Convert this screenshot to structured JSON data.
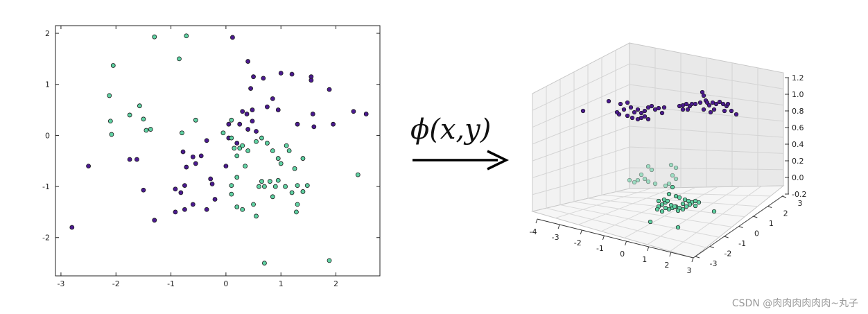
{
  "chart_data": [
    {
      "type": "scatter",
      "title": "",
      "xlabel": "",
      "ylabel": "",
      "xlim": [
        -3.1,
        2.8
      ],
      "ylim": [
        -2.75,
        2.15
      ],
      "xticks": [
        -3,
        -2,
        -1,
        0,
        1,
        2
      ],
      "yticks": [
        2,
        1,
        0,
        -1,
        -2
      ],
      "grid": false,
      "series": [
        {
          "color": "#4b1a8f",
          "points": [
            [
              -2.8,
              -1.8
            ],
            [
              -2.5,
              -0.6
            ],
            [
              -1.75,
              -0.47
            ],
            [
              -1.62,
              -0.47
            ],
            [
              -1.5,
              -1.07
            ],
            [
              -1.3,
              -1.66
            ],
            [
              0.12,
              1.92
            ],
            [
              0.4,
              1.45
            ],
            [
              0.5,
              1.15
            ],
            [
              0.68,
              1.12
            ],
            [
              1.0,
              1.22
            ],
            [
              1.2,
              1.2
            ],
            [
              1.55,
              1.15
            ],
            [
              1.88,
              0.9
            ],
            [
              1.55,
              1.08
            ],
            [
              0.45,
              0.92
            ],
            [
              0.85,
              0.72
            ],
            [
              0.75,
              0.56
            ],
            [
              0.95,
              0.5
            ],
            [
              0.3,
              0.47
            ],
            [
              0.48,
              0.5
            ],
            [
              0.38,
              0.42
            ],
            [
              0.48,
              0.28
            ],
            [
              0.25,
              0.22
            ],
            [
              0.4,
              0.12
            ],
            [
              0.55,
              0.08
            ],
            [
              0.05,
              0.22
            ],
            [
              1.3,
              0.22
            ],
            [
              1.58,
              0.42
            ],
            [
              1.6,
              0.17
            ],
            [
              1.95,
              0.22
            ],
            [
              2.32,
              0.47
            ],
            [
              2.55,
              0.42
            ],
            [
              0.05,
              -0.05
            ],
            [
              0.2,
              -0.15
            ],
            [
              -0.35,
              -0.1
            ],
            [
              -0.55,
              -0.55
            ],
            [
              -0.78,
              -0.32
            ],
            [
              -0.72,
              -0.62
            ],
            [
              -0.45,
              -0.4
            ],
            [
              -0.6,
              -0.42
            ],
            [
              -0.28,
              -0.85
            ],
            [
              -0.25,
              -0.95
            ],
            [
              -0.2,
              -1.25
            ],
            [
              -0.35,
              -1.45
            ],
            [
              -0.6,
              -1.35
            ],
            [
              -0.75,
              -1.45
            ],
            [
              -0.82,
              -1.12
            ],
            [
              -0.92,
              -1.05
            ],
            [
              -0.75,
              -0.98
            ],
            [
              -0.92,
              -1.5
            ],
            [
              0.0,
              -0.6
            ]
          ]
        },
        {
          "color": "#5fd1a2",
          "points": [
            [
              -1.3,
              1.93
            ],
            [
              -0.72,
              1.95
            ],
            [
              -0.85,
              1.5
            ],
            [
              -2.05,
              1.37
            ],
            [
              -2.12,
              0.78
            ],
            [
              -1.57,
              0.58
            ],
            [
              -1.75,
              0.4
            ],
            [
              -1.5,
              0.32
            ],
            [
              -2.1,
              0.28
            ],
            [
              -1.45,
              0.1
            ],
            [
              -1.37,
              0.12
            ],
            [
              -2.08,
              0.02
            ],
            [
              -0.8,
              0.05
            ],
            [
              -0.55,
              0.3
            ],
            [
              -0.05,
              0.05
            ],
            [
              0.1,
              0.3
            ],
            [
              0.1,
              -0.05
            ],
            [
              0.15,
              -0.25
            ],
            [
              0.2,
              -0.4
            ],
            [
              0.25,
              -0.25
            ],
            [
              0.3,
              -0.2
            ],
            [
              0.4,
              -0.3
            ],
            [
              0.35,
              -0.6
            ],
            [
              0.55,
              -0.12
            ],
            [
              0.65,
              -0.05
            ],
            [
              0.75,
              -0.15
            ],
            [
              0.85,
              -0.3
            ],
            [
              0.95,
              -0.45
            ],
            [
              1.0,
              -0.55
            ],
            [
              1.15,
              -0.3
            ],
            [
              1.1,
              -0.2
            ],
            [
              1.25,
              -0.65
            ],
            [
              1.4,
              -0.45
            ],
            [
              0.2,
              -0.82
            ],
            [
              0.1,
              -0.98
            ],
            [
              0.65,
              -0.9
            ],
            [
              0.7,
              -1.0
            ],
            [
              0.6,
              -1.0
            ],
            [
              0.8,
              -0.9
            ],
            [
              0.9,
              -1.0
            ],
            [
              0.85,
              -1.2
            ],
            [
              0.95,
              -0.88
            ],
            [
              1.08,
              -1.0
            ],
            [
              1.2,
              -1.12
            ],
            [
              1.3,
              -0.98
            ],
            [
              1.4,
              -1.1
            ],
            [
              1.48,
              -0.98
            ],
            [
              1.3,
              -1.35
            ],
            [
              1.28,
              -1.5
            ],
            [
              0.5,
              -1.35
            ],
            [
              0.55,
              -1.58
            ],
            [
              0.3,
              -1.45
            ],
            [
              0.1,
              -1.15
            ],
            [
              0.7,
              -2.5
            ],
            [
              1.88,
              -2.45
            ],
            [
              2.4,
              -0.77
            ],
            [
              0.2,
              -1.4
            ]
          ]
        }
      ]
    },
    {
      "type": "scatter",
      "title": "",
      "grid": true,
      "xticks": [
        "-4",
        "-3",
        "-2",
        "-1",
        "0",
        "1",
        "2",
        "3"
      ],
      "yticks": [
        "-3",
        "-2",
        "-1",
        "0",
        "1",
        "2",
        "3"
      ],
      "zticks": [
        "1.2",
        "1.0",
        "0.8",
        "0.6",
        "0.4",
        "0.2",
        "0.0",
        "-0.2"
      ],
      "series": [
        {
          "color": "#4b1a8f",
          "points_proj": [
            [
              841,
              160
            ],
            [
              878,
              146
            ],
            [
              895,
              150
            ],
            [
              905,
              148
            ],
            [
              910,
              155
            ],
            [
              900,
              158
            ],
            [
              893,
              165
            ],
            [
              890,
              162
            ],
            [
              915,
              162
            ],
            [
              920,
              158
            ],
            [
              925,
              163
            ],
            [
              930,
              160
            ],
            [
              935,
              155
            ],
            [
              940,
              153
            ],
            [
              945,
              158
            ],
            [
              950,
              156
            ],
            [
              958,
              155
            ],
            [
              955,
              163
            ],
            [
              930,
              168
            ],
            [
              925,
              170
            ],
            [
              920,
              172
            ],
            [
              912,
              170
            ],
            [
              905,
              167
            ],
            [
              935,
              172
            ],
            [
              980,
              153
            ],
            [
              985,
              152
            ],
            [
              990,
              150
            ],
            [
              995,
              153
            ],
            [
              998,
              150
            ],
            [
              1003,
              150
            ],
            [
              1010,
              148
            ],
            [
              1013,
              133
            ],
            [
              1015,
              138
            ],
            [
              1018,
              145
            ],
            [
              1020,
              148
            ],
            [
              1023,
              152
            ],
            [
              1028,
              148
            ],
            [
              1033,
              150
            ],
            [
              1038,
              147
            ],
            [
              1043,
              150
            ],
            [
              1048,
              153
            ],
            [
              1050,
              150
            ],
            [
              1055,
              160
            ],
            [
              1062,
              165
            ],
            [
              1045,
              160
            ],
            [
              1030,
              158
            ],
            [
              1025,
              162
            ],
            [
              1015,
              158
            ],
            [
              985,
              158
            ],
            [
              992,
              158
            ]
          ]
        },
        {
          "color": "#5fd1a2",
          "points_proj": [
            [
              935,
              240
            ],
            [
              940,
              245
            ],
            [
              968,
              238
            ],
            [
              975,
              242
            ],
            [
              925,
              252
            ],
            [
              930,
              258
            ],
            [
              935,
              262
            ],
            [
              920,
              260
            ],
            [
              908,
              260
            ],
            [
              915,
              263
            ],
            [
              945,
              265
            ],
            [
              970,
              253
            ],
            [
              975,
              258
            ],
            [
              965,
              265
            ],
            [
              970,
              270
            ],
            [
              960,
              268
            ],
            [
              965,
              280
            ],
            [
              975,
              283
            ],
            [
              980,
              285
            ],
            [
              988,
              288
            ],
            [
              993,
              290
            ],
            [
              998,
              292
            ],
            [
              1003,
              290
            ],
            [
              1008,
              292
            ],
            [
              960,
              292
            ],
            [
              955,
              295
            ],
            [
              950,
              298
            ],
            [
              948,
              302
            ],
            [
              955,
              305
            ],
            [
              960,
              300
            ],
            [
              965,
              302
            ],
            [
              970,
              300
            ],
            [
              975,
              298
            ],
            [
              980,
              300
            ],
            [
              985,
              302
            ],
            [
              990,
              298
            ],
            [
              995,
              295
            ],
            [
              985,
              294
            ],
            [
              978,
              304
            ],
            [
              973,
              298
            ],
            [
              968,
              296
            ],
            [
              963,
              290
            ],
            [
              958,
              288
            ],
            [
              1030,
              305
            ],
            [
              938,
              320
            ],
            [
              978,
              328
            ],
            [
              950,
              290
            ],
            [
              1003,
              297
            ]
          ]
        }
      ]
    }
  ],
  "arrow": {
    "label": "ϕ(x,y)"
  },
  "watermark": "CSDN @肉肉肉肉肉肉~丸子"
}
